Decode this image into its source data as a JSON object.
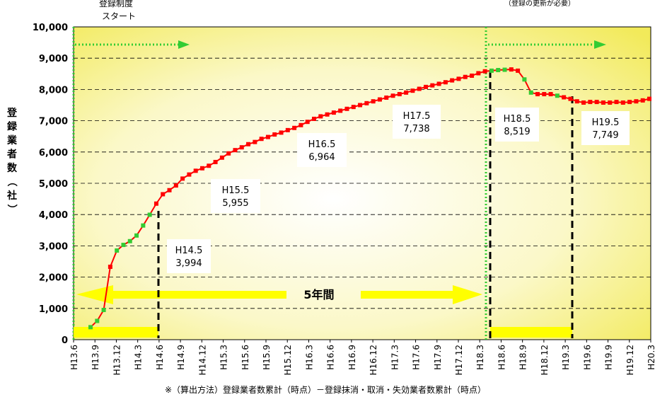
{
  "chart_data": {
    "type": "line",
    "ylabel": "登録業者数（社）",
    "ylim": [
      0,
      10000
    ],
    "y_ticks": [
      "0",
      "1,000",
      "2,000",
      "3,000",
      "4,000",
      "5,000",
      "6,000",
      "7,000",
      "8,000",
      "9,000",
      "10,000"
    ],
    "x_ticks": [
      "H13.6",
      "H13.9",
      "H13.12",
      "H14.3",
      "H14.6",
      "H14.9",
      "H14.12",
      "H15.3",
      "H15.6",
      "H15.9",
      "H15.12",
      "H16.3",
      "H16.6",
      "H16.9",
      "H16.12",
      "H17.3",
      "H17.6",
      "H17.9",
      "H17.12",
      "H18.3",
      "H18.6",
      "H18.9",
      "H18.12",
      "H19.3",
      "H19.6",
      "H19.9",
      "H19.12",
      "H20.3"
    ],
    "grid": true,
    "series": [
      {
        "values": [
          400,
          600,
          950,
          2330,
          2850,
          3030,
          3150,
          3330,
          3650,
          3994,
          4350,
          4650,
          4780,
          4930,
          5150,
          5280,
          5400,
          5480,
          5560,
          5680,
          5820,
          5955,
          6060,
          6150,
          6250,
          6320,
          6420,
          6480,
          6560,
          6620,
          6700,
          6770,
          6860,
          6964,
          7060,
          7140,
          7200,
          7260,
          7320,
          7380,
          7440,
          7500,
          7560,
          7620,
          7680,
          7738,
          7800,
          7850,
          7900,
          7960,
          8020,
          8080,
          8130,
          8180,
          8230,
          8290,
          8340,
          8400,
          8440,
          8519,
          8580,
          8600,
          8620,
          8630,
          8640,
          8600,
          8320,
          7900,
          7850,
          7850,
          7850,
          7800,
          7749,
          7700,
          7620,
          7580,
          7600,
          7600,
          7580,
          7580,
          7600,
          7580,
          7600,
          7620,
          7650,
          7700
        ]
      }
    ],
    "annotations": [
      {
        "label": "H14.5",
        "value": "3,994"
      },
      {
        "label": "H15.5",
        "value": "5,955"
      },
      {
        "label": "H16.5",
        "value": "6,964"
      },
      {
        "label": "H17.5",
        "value": "7,738"
      },
      {
        "label": "H18.5",
        "value": "8,519"
      },
      {
        "label": "H19.5",
        "value": "7,749"
      }
    ]
  },
  "callouts": {
    "start_line1": "登録制度",
    "start_line2": "スタート",
    "renewal": "（登録の更新が必要）",
    "period": "5年間"
  },
  "footnote": "※（算出方法）登録業者数累計（時点）－登録抹消・取消・失効業者数累計（時点）",
  "colors": {
    "line": "#ff0000",
    "marker_red": "#ff0000",
    "marker_green": "#33cc33",
    "arrow": "#ffff00",
    "dotted_arrow": "#33cc33",
    "bg_center": "#ffffff",
    "bg_edge": "#f5ef6a"
  }
}
